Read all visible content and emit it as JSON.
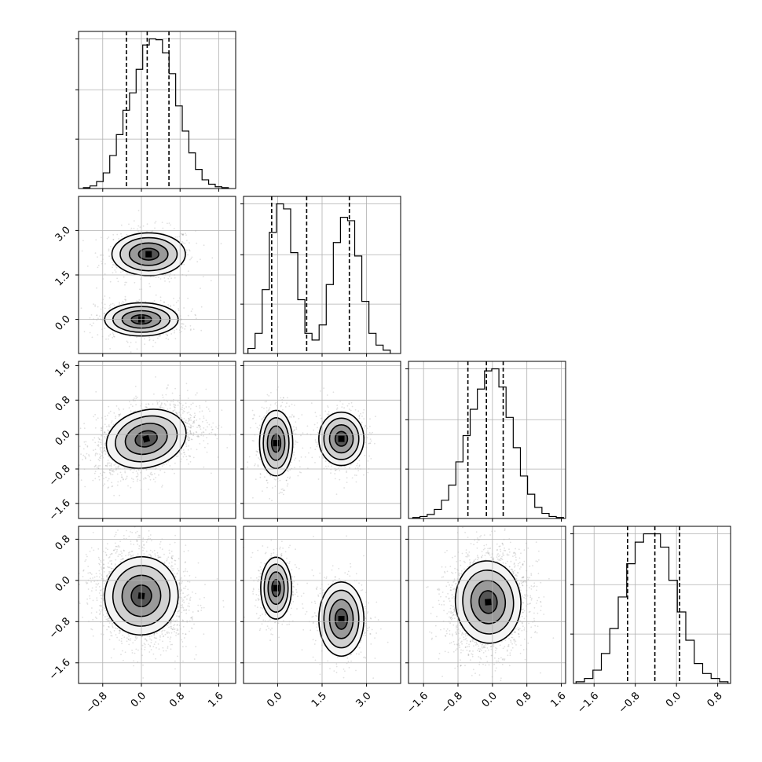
{
  "chart_data": {
    "type": "corner",
    "title": "",
    "parameters": 4,
    "grid": true,
    "panel_ranges": [
      [
        -1.3,
        1.95
      ],
      [
        -1.15,
        4.15
      ],
      [
        -1.95,
        1.7
      ],
      [
        -2.0,
        1.05
      ]
    ],
    "ticks": [
      {
        "values": [
          -0.8,
          0.0,
          0.8,
          1.6
        ],
        "labels": [
          "−0.8",
          "0.0",
          "0.8",
          "1.6"
        ]
      },
      {
        "values": [
          0.0,
          1.5,
          3.0
        ],
        "labels": [
          "0.0",
          "1.5",
          "3.0"
        ]
      },
      {
        "values": [
          -1.6,
          -0.8,
          0.0,
          0.8,
          1.6
        ],
        "labels": [
          "−1.6",
          "−0.8",
          "0.0",
          "0.8",
          "1.6"
        ]
      },
      {
        "values": [
          -1.6,
          -0.8,
          0.0,
          0.8
        ],
        "labels": [
          "−1.6",
          "−0.8",
          "0.0",
          "0.8"
        ]
      }
    ],
    "quantiles": [
      [
        -0.31,
        0.12,
        0.57
      ],
      [
        -0.2,
        0.98,
        2.42
      ],
      [
        -0.57,
        -0.14,
        0.25
      ],
      [
        -0.95,
        -0.42,
        0.06
      ]
    ],
    "histograms": [
      {
        "bins": [
          -1.2,
          1.8
        ],
        "counts": [
          1,
          3,
          8,
          18,
          38,
          62,
          90,
          110,
          137,
          165,
          172,
          171,
          156,
          132,
          95,
          66,
          41,
          22,
          10,
          5,
          2,
          1
        ]
      },
      {
        "bins": [
          -1.0,
          3.8
        ],
        "counts": [
          3,
          12,
          38,
          72,
          89,
          86,
          60,
          32,
          12,
          8,
          17,
          41,
          66,
          81,
          79,
          58,
          31,
          12,
          5,
          2
        ]
      },
      {
        "bins": [
          -1.85,
          1.65
        ],
        "counts": [
          1,
          2,
          4,
          9,
          18,
          33,
          56,
          82,
          108,
          128,
          146,
          148,
          130,
          100,
          70,
          42,
          24,
          11,
          5,
          2,
          1
        ]
      },
      {
        "bins": [
          -1.95,
          1.0
        ],
        "counts": [
          1,
          3,
          8,
          18,
          33,
          52,
          72,
          85,
          90,
          90,
          82,
          62,
          43,
          26,
          12,
          6,
          3,
          1
        ]
      }
    ],
    "clusters": [
      {
        "x": 0,
        "y": 1,
        "components": [
          {
            "mx": 0.15,
            "my": 2.2,
            "sx": 0.38,
            "sy": 0.36,
            "rho": 0.0,
            "w": 0.5
          },
          {
            "mx": 0.0,
            "my": 0.0,
            "sx": 0.38,
            "sy": 0.28,
            "rho": 0.0,
            "w": 0.5
          }
        ]
      },
      {
        "x": 0,
        "y": 2,
        "components": [
          {
            "mx": 0.1,
            "my": -0.1,
            "sx": 0.42,
            "sy": 0.33,
            "rho": 0.35,
            "w": 1.0
          }
        ]
      },
      {
        "x": 1,
        "y": 2,
        "components": [
          {
            "mx": -0.05,
            "my": -0.2,
            "sx": 0.28,
            "sy": 0.38,
            "rho": 0.0,
            "w": 0.5
          },
          {
            "mx": 2.15,
            "my": -0.1,
            "sx": 0.38,
            "sy": 0.31,
            "rho": 0.0,
            "w": 0.5
          }
        ]
      },
      {
        "x": 0,
        "y": 3,
        "components": [
          {
            "mx": 0.0,
            "my": -0.3,
            "sx": 0.38,
            "sy": 0.38,
            "rho": -0.15,
            "w": 1.0
          }
        ]
      },
      {
        "x": 1,
        "y": 3,
        "components": [
          {
            "mx": -0.05,
            "my": -0.15,
            "sx": 0.26,
            "sy": 0.3,
            "rho": 0.0,
            "w": 0.5
          },
          {
            "mx": 2.15,
            "my": -0.75,
            "sx": 0.38,
            "sy": 0.36,
            "rho": 0.0,
            "w": 0.5
          }
        ]
      },
      {
        "x": 2,
        "y": 3,
        "components": [
          {
            "mx": -0.1,
            "my": -0.42,
            "sx": 0.38,
            "sy": 0.4,
            "rho": 0.1,
            "w": 1.0
          }
        ]
      }
    ]
  }
}
